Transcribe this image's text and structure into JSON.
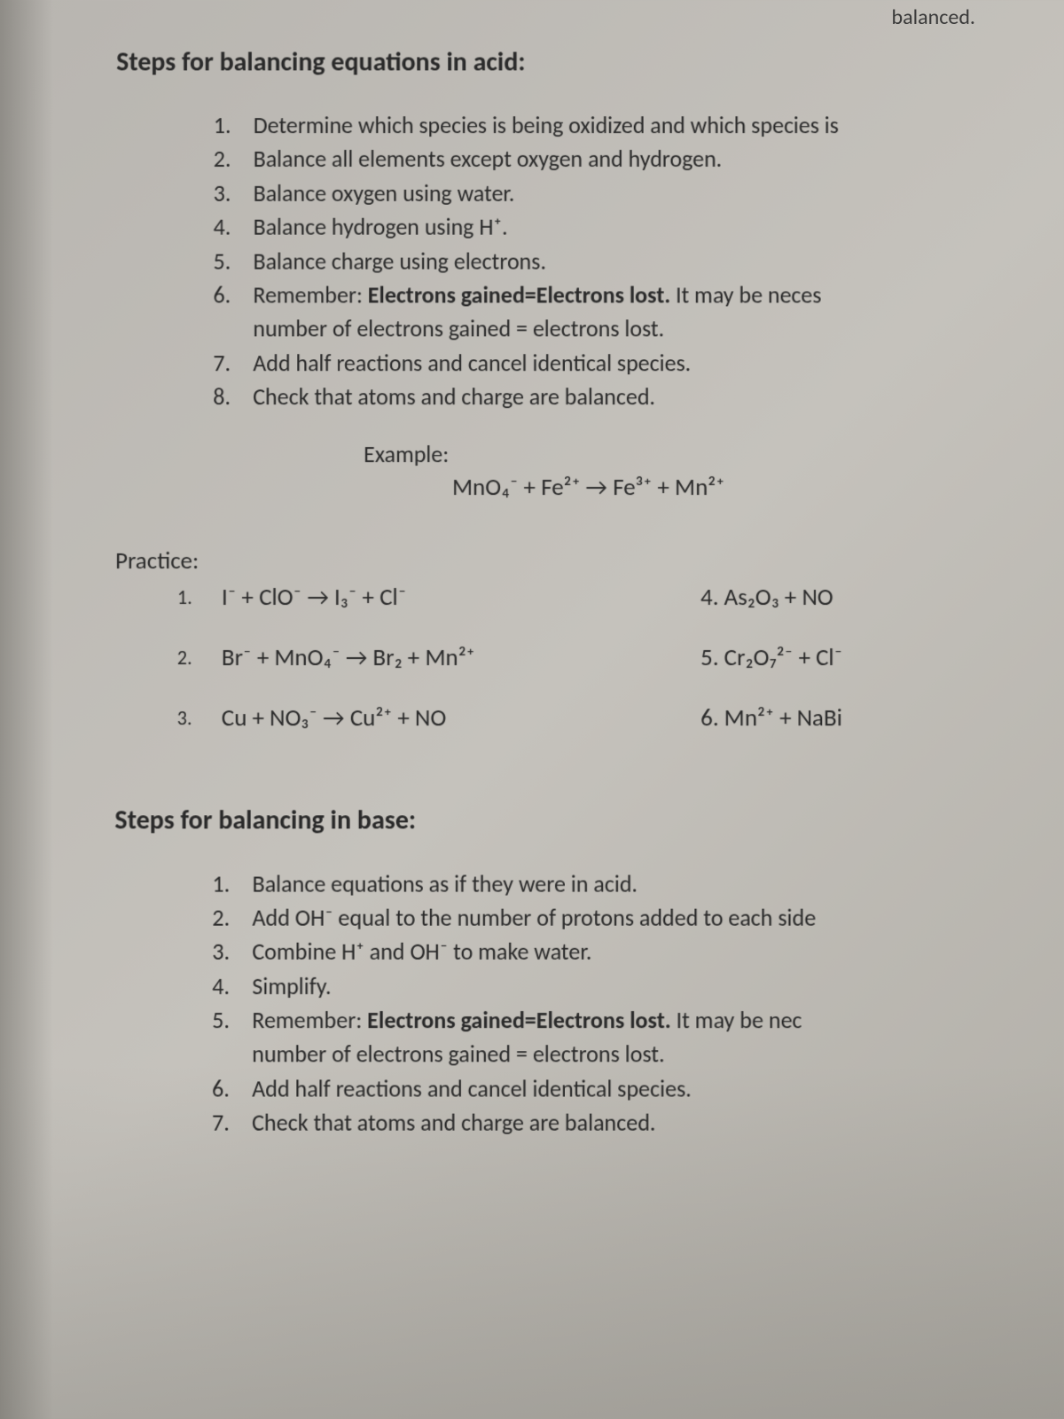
{
  "header_fragment": "balanced.",
  "acid_section": {
    "title": "Steps for balancing equations in acid:",
    "steps": [
      {
        "num": "1.",
        "text": "Determine which species is being oxidized and which species is"
      },
      {
        "num": "2.",
        "text": "Balance all elements except oxygen and hydrogen."
      },
      {
        "num": "3.",
        "text": "Balance oxygen using water."
      },
      {
        "num": "4.",
        "text": "Balance hydrogen using H⁺."
      },
      {
        "num": "5.",
        "text": "Balance charge using electrons."
      },
      {
        "num": "6.",
        "text_html": "Remember: <b>Electrons gained=Electrons lost.</b> It may be neces"
      },
      {
        "num": "",
        "text": "number of electrons gained = electrons lost."
      },
      {
        "num": "7.",
        "text": "Add half reactions and cancel identical species."
      },
      {
        "num": "8.",
        "text": "Check that atoms and charge are balanced."
      }
    ]
  },
  "example": {
    "label": "Example:",
    "equation": "MnO₄⁻ + Fe²⁺  →  Fe³⁺  +  Mn²⁺"
  },
  "practice": {
    "title": "Practice:",
    "rows": [
      {
        "num": "1.",
        "left": "I⁻  +  ClO⁻  →  I₃⁻  +  Cl⁻",
        "right": "4.  As₂O₃  +  NO"
      },
      {
        "num": "2.",
        "left": "Br⁻  +  MnO₄⁻  →  Br₂  +  Mn²⁺",
        "right": "5.  Cr₂O₇²⁻  +  Cl⁻"
      },
      {
        "num": "3.",
        "left": "Cu  +  NO₃⁻  →  Cu²⁺  +  NO",
        "right": "6.  Mn²⁺  +  NaBi"
      }
    ]
  },
  "base_section": {
    "title": "Steps for balancing in base:",
    "steps": [
      {
        "num": "1.",
        "text": "Balance equations as if they were in acid."
      },
      {
        "num": "2.",
        "text": "Add OH⁻ equal to the number of protons added to each side"
      },
      {
        "num": "3.",
        "text": "Combine H⁺ and OH⁻ to make water."
      },
      {
        "num": "4.",
        "text": "Simplify."
      },
      {
        "num": "5.",
        "text_html": "Remember: <b>Electrons gained=Electrons lost.</b> It may be nec"
      },
      {
        "num": "",
        "text": "number of electrons gained = electrons lost."
      },
      {
        "num": "6.",
        "text": "Add half reactions and cancel identical species."
      },
      {
        "num": "7.",
        "text": "Check that atoms and charge are balanced."
      }
    ]
  }
}
